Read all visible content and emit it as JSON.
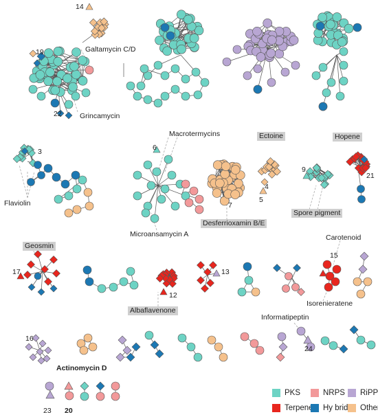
{
  "labels": {
    "galtamycin": "Galtamycin C/D",
    "grincamycin": "Grincamycin",
    "macrotermycins": "Macrotermycins",
    "ectoine": "Ectoine",
    "hopene": "Hopene",
    "flaviolin": "Flaviolin",
    "microansamycin": "Microansamycin A",
    "desferrioxamin": "Desferrioxamin B/E",
    "spore_pigment": "Spore pigment",
    "geosmin": "Geosmin",
    "carotenoid": "Carotenoid",
    "albaflavenone": "Albaflavenone",
    "informatipeptin": "Informatipeptin",
    "isorenieratene": "Isorenieratene",
    "actinomycin": "Actinomycin D"
  },
  "numbers": {
    "n14": "14",
    "n19": "19",
    "n22": "22",
    "n3": "3",
    "n6": "6",
    "n7": "7",
    "n4": "4",
    "n5": "5",
    "n9": "9",
    "n21": "21",
    "n17": "17",
    "n15": "15",
    "n13": "13",
    "n12": "12",
    "n16": "16",
    "n24": "24",
    "n23": "23",
    "n20": "20"
  },
  "legend": {
    "items": [
      {
        "label": "PKS",
        "color": "#6dd3c4"
      },
      {
        "label": "NRPS",
        "color": "#f2999a"
      },
      {
        "label": "RiPPs",
        "color": "#b8a6d3"
      },
      {
        "label": "Terpene",
        "color": "#e8261e"
      },
      {
        "label": "Hy brid",
        "color": "#1c78b3"
      },
      {
        "label": "Other",
        "color": "#f5c18c"
      }
    ]
  },
  "colors": {
    "pks": "#6dd3c4",
    "nrps": "#f2999a",
    "ripps": "#b8a6d3",
    "terpene": "#e8261e",
    "hybrid": "#1c78b3",
    "other": "#f5c18c"
  }
}
